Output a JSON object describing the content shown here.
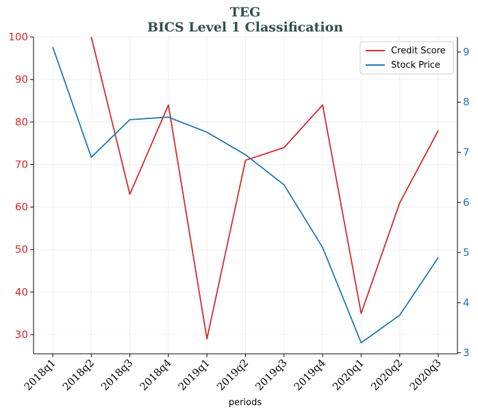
{
  "chart_data": {
    "type": "line",
    "title": "TEG",
    "subtitle": "BICS Level 1 Classification",
    "xlabel": "periods",
    "categories": [
      "2018q1",
      "2018q2",
      "2018q3",
      "2018q4",
      "2019q1",
      "2019q2",
      "2019q3",
      "2019q4",
      "2020q1",
      "2020q2",
      "2020q3"
    ],
    "series": [
      {
        "name": "Credit Score",
        "axis": "left",
        "color": "#d62728",
        "values": [
          null,
          100,
          63,
          84,
          29,
          71,
          74,
          84,
          35,
          61,
          78
        ]
      },
      {
        "name": "Stock Price",
        "axis": "right",
        "color": "#1f77b4",
        "values": [
          9.1,
          6.9,
          7.65,
          7.7,
          7.4,
          6.95,
          6.35,
          5.1,
          3.2,
          3.75,
          4.9
        ]
      }
    ],
    "y_left": {
      "ylim": [
        25.5,
        100
      ],
      "ticks": [
        "30",
        "40",
        "50",
        "60",
        "70",
        "80",
        "90",
        "100"
      ],
      "color": "#d62728"
    },
    "y_right": {
      "ylim": [
        2.98,
        9.3
      ],
      "ticks": [
        "3",
        "4",
        "5",
        "6",
        "7",
        "8",
        "9"
      ],
      "color": "#1f77b4"
    },
    "grid": true,
    "legend": "top-right"
  }
}
